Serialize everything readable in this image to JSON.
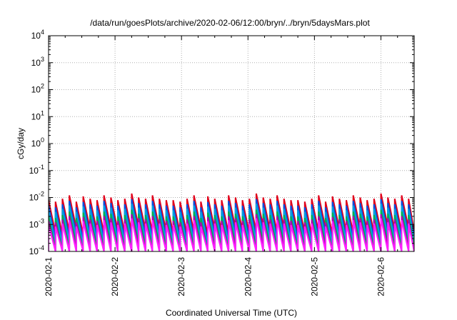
{
  "chart_data": {
    "type": "line",
    "title": "/data/run/goesPlots/archive/2020-02-06/12:00/bryn/../bryn/5daysMars.plot",
    "xlabel": "Coordinated Universal Time (UTC)",
    "ylabel": "cGy/day",
    "y_scale": "log",
    "ylim": [
      0.0001,
      10000
    ],
    "y_ticks": [
      {
        "base": "10",
        "exp": "4"
      },
      {
        "base": "10",
        "exp": "3"
      },
      {
        "base": "10",
        "exp": "2"
      },
      {
        "base": "10",
        "exp": "1"
      },
      {
        "base": "10",
        "exp": "0"
      },
      {
        "base": "10",
        "exp": "-1"
      },
      {
        "base": "10",
        "exp": "-2"
      },
      {
        "base": "10",
        "exp": "-3"
      },
      {
        "base": "10",
        "exp": "-4"
      }
    ],
    "x_start": "2020-02-01",
    "x_end": "2020-02-06 12:00",
    "x_ticks": [
      "2020-02-1",
      "2020-02-2",
      "2020-02-3",
      "2020-02-4",
      "2020-02-5",
      "2020-02-6"
    ],
    "grid": true,
    "series_colors": [
      "#e0001b",
      "#0050e0",
      "#00a0e0",
      "#00b050",
      "#b000b0",
      "#ff20ff"
    ],
    "sawtooth": {
      "period_hours": 2.5,
      "peak_values_top_series": [
        0.008,
        0.007,
        0.009,
        0.012,
        0.007,
        0.011,
        0.009,
        0.008,
        0.012,
        0.01,
        0.008,
        0.009,
        0.014,
        0.01,
        0.009,
        0.012,
        0.009,
        0.008
      ],
      "series_ratios": [
        1.0,
        0.62,
        0.42,
        0.25,
        0.17,
        0.12
      ],
      "decay_factor": 0.06
    }
  }
}
